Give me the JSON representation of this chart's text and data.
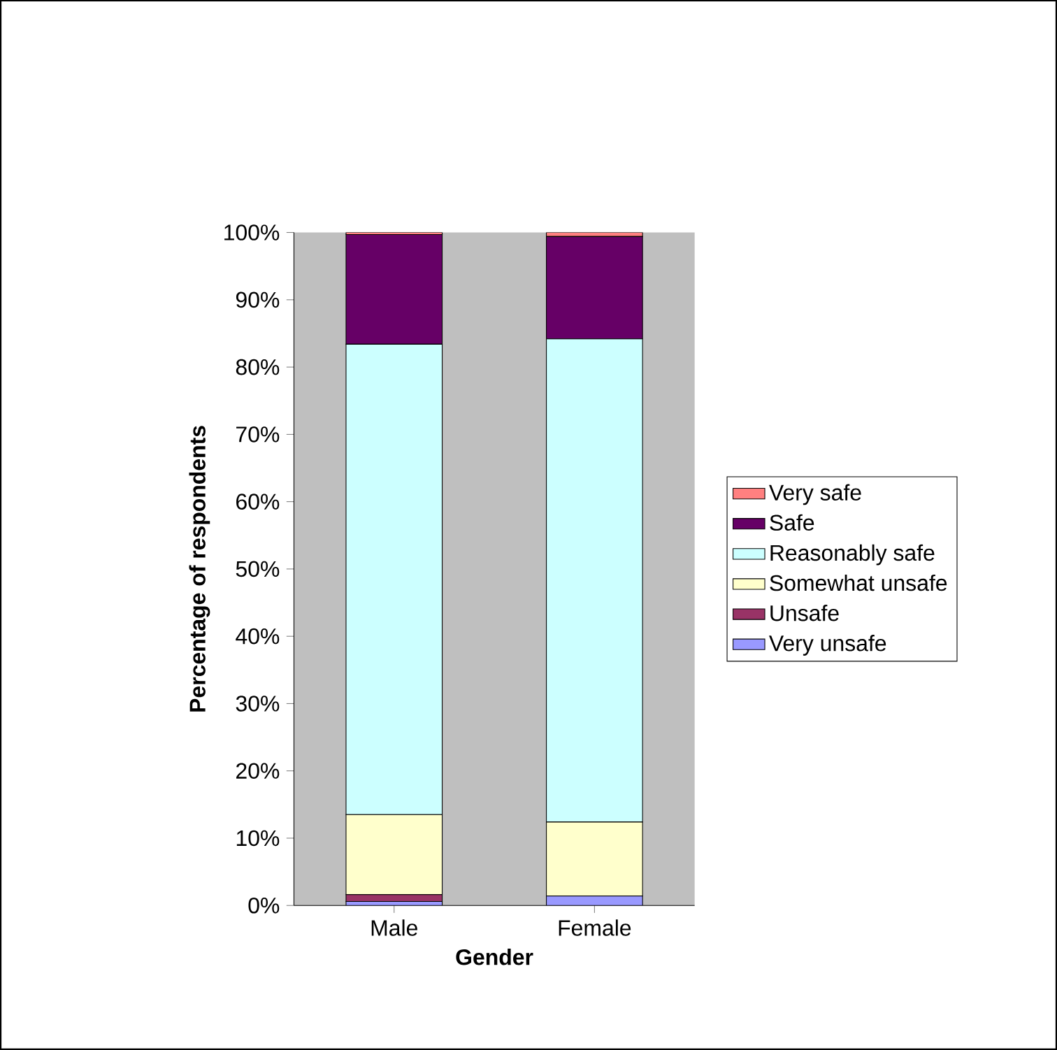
{
  "chart_data": {
    "type": "bar",
    "stacked": true,
    "xlabel": "Gender",
    "ylabel": "Percentage of respondents",
    "categories": [
      "Male",
      "Female"
    ],
    "series": [
      {
        "name": "Very unsafe",
        "color": "#9999ff",
        "values": [
          0.6,
          1.4
        ]
      },
      {
        "name": "Unsafe",
        "color": "#993366",
        "values": [
          1.0,
          0
        ]
      },
      {
        "name": "Somewhat unsafe",
        "color": "#ffffcc",
        "values": [
          11.9,
          11.0
        ]
      },
      {
        "name": "Reasonably safe",
        "color": "#ccffff",
        "values": [
          69.9,
          71.8
        ]
      },
      {
        "name": "Safe",
        "color": "#660066",
        "values": [
          16.3,
          15.2
        ]
      },
      {
        "name": "Very safe",
        "color": "#ff8080",
        "values": [
          0.3,
          0.6
        ]
      }
    ],
    "ylim": [
      0,
      100
    ],
    "yticks": [
      {
        "value": 0,
        "label": "0%"
      },
      {
        "value": 10,
        "label": "10%"
      },
      {
        "value": 20,
        "label": "20%"
      },
      {
        "value": 30,
        "label": "30%"
      },
      {
        "value": 40,
        "label": "40%"
      },
      {
        "value": 50,
        "label": "50%"
      },
      {
        "value": 60,
        "label": "60%"
      },
      {
        "value": 70,
        "label": "70%"
      },
      {
        "value": 80,
        "label": "80%"
      },
      {
        "value": 90,
        "label": "90%"
      },
      {
        "value": 100,
        "label": "100%"
      }
    ],
    "legend": "right",
    "grid": false
  }
}
